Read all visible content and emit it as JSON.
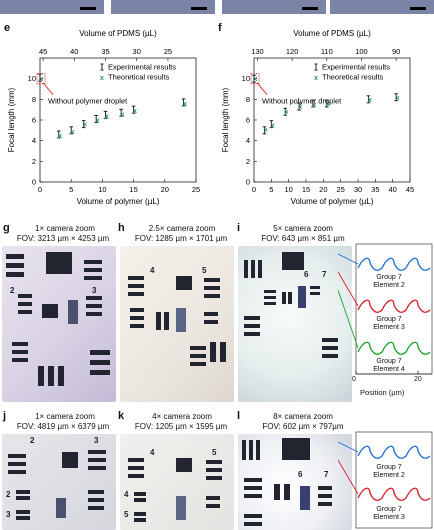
{
  "colors": {
    "point": "#2a8f86",
    "errbar": "#111111",
    "axis": "#222222",
    "annot": "#d42a2a",
    "blue": "#1f6fd6",
    "red": "#d81e2a",
    "green": "#1aa32a"
  },
  "legend": {
    "experimental": "Experimental results",
    "theoretical": "Theoretical results"
  },
  "panels": {
    "e": {
      "letter": "e",
      "annotation": "Without polymer droplet"
    },
    "f": {
      "letter": "f",
      "annotation": "Without polymer droplet"
    },
    "g": {
      "letter": "g",
      "zoom": "1× camera zoom",
      "fov": "FOV: 3213 µm × 4253 µm"
    },
    "h": {
      "letter": "h",
      "zoom": "2.5× camera zoom",
      "fov": "FOV: 1285 µm × 1701 µm"
    },
    "i": {
      "letter": "i",
      "zoom": "5× camera zoom",
      "fov": "FOV: 643 µm × 851 µm"
    },
    "j": {
      "letter": "j",
      "zoom": "1× camera zoom",
      "fov": "FOV: 4819 µm × 6379 µm"
    },
    "k": {
      "letter": "k",
      "zoom": "4× camera zoom",
      "fov": "FOV: 1205 µm × 1595 µm"
    },
    "l": {
      "letter": "l",
      "zoom": "8× camera zoom",
      "fov": "FOV: 602 µm × 797µm"
    }
  },
  "profiles_i": {
    "labels": [
      "Group 7\nElement 2",
      "Group 7\nElement 3",
      "Group 7\nElement 4"
    ],
    "xlabel": "Position (µm)",
    "xticks": [
      "0",
      "20"
    ]
  },
  "profiles_l": {
    "labels": [
      "Group 7\nElement 2",
      "Group 7\nElement 3"
    ]
  },
  "photo_text": {
    "g": [
      "2",
      "3"
    ],
    "h": [
      "4",
      "5"
    ],
    "i": [
      "6",
      "7"
    ],
    "j": [
      "2",
      "3",
      "2",
      "3"
    ],
    "k": [
      "4",
      "5",
      "4",
      "5"
    ],
    "l": [
      "6",
      "7"
    ]
  },
  "chart_data": [
    {
      "type": "scatter",
      "panel": "e",
      "xlabel": "Volume of polymer (µL)",
      "ylabel": "Focal length (mm)",
      "top_xlabel": "Volume of PDMS (µL)",
      "xlim": [
        0,
        25
      ],
      "ylim": [
        0,
        12
      ],
      "xticks": [
        0,
        5,
        10,
        15,
        20,
        25
      ],
      "yticks": [
        0,
        2,
        4,
        6,
        8,
        10
      ],
      "top_ticks": {
        "labels": [
          "45",
          "40",
          "35",
          "30",
          "25"
        ],
        "x": [
          0.5,
          5.5,
          10.5,
          15.5,
          20.5
        ]
      },
      "series": [
        {
          "name": "Experimental results",
          "x": [
            0,
            3,
            5,
            7,
            9,
            10.5,
            13,
            15,
            23
          ],
          "y": [
            10.1,
            4.6,
            5.0,
            5.6,
            6.1,
            6.5,
            6.7,
            7.0,
            7.7
          ]
        },
        {
          "name": "Theoretical results",
          "x": [
            0,
            3,
            5,
            7,
            9,
            10.5,
            13,
            15,
            23
          ],
          "y": [
            10.0,
            4.5,
            4.9,
            5.6,
            6.0,
            6.4,
            6.6,
            6.9,
            7.6
          ]
        }
      ]
    },
    {
      "type": "scatter",
      "panel": "f",
      "xlabel": "Volume of polymer (µL)",
      "ylabel": "Focal length (mm)",
      "top_xlabel": "Volume of PDMS (µL)",
      "xlim": [
        0,
        45
      ],
      "ylim": [
        0,
        12
      ],
      "xticks": [
        0,
        5,
        10,
        15,
        20,
        25,
        30,
        35,
        40,
        45
      ],
      "yticks": [
        0,
        2,
        4,
        6,
        8,
        10
      ],
      "top_ticks": {
        "labels": [
          "130",
          "120",
          "110",
          "100",
          "90"
        ],
        "x": [
          1,
          11,
          21,
          31,
          41
        ]
      },
      "series": [
        {
          "name": "Experimental results",
          "x": [
            0,
            3,
            5,
            9,
            13,
            17,
            21,
            33,
            41
          ],
          "y": [
            10.0,
            5.0,
            5.6,
            6.8,
            7.3,
            7.6,
            7.6,
            8.0,
            8.2
          ]
        },
        {
          "name": "Theoretical results",
          "x": [
            0,
            3,
            5,
            9,
            13,
            17,
            21,
            33,
            41
          ],
          "y": [
            10.0,
            5.1,
            5.5,
            6.8,
            7.3,
            7.5,
            7.6,
            8.0,
            8.2
          ]
        }
      ]
    }
  ]
}
